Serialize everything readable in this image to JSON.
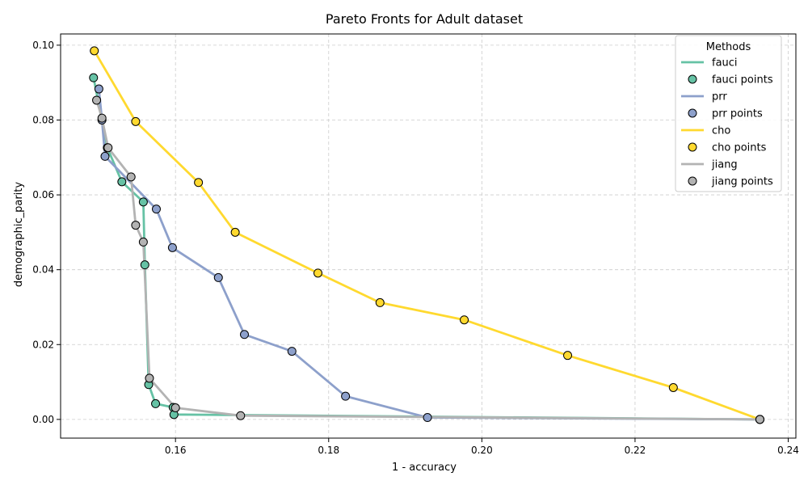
{
  "chart_data": {
    "type": "line",
    "title": "Pareto Fronts for Adult dataset",
    "xlabel": "1 - accuracy",
    "ylabel": "demographic_parity",
    "xlim": [
      0.145,
      0.241
    ],
    "ylim": [
      -0.005,
      0.103
    ],
    "xticks": [
      0.16,
      0.18,
      0.2,
      0.22,
      0.24
    ],
    "xtick_labels": [
      "0.16",
      "0.18",
      "0.20",
      "0.22",
      "0.24"
    ],
    "yticks": [
      0.0,
      0.02,
      0.04,
      0.06,
      0.08,
      0.1
    ],
    "ytick_labels": [
      "0.00",
      "0.02",
      "0.04",
      "0.06",
      "0.08",
      "0.10"
    ],
    "grid": true,
    "legend": {
      "title": "Methods",
      "position": "top-right",
      "entries": [
        {
          "label": "fauci",
          "kind": "line",
          "series": 0
        },
        {
          "label": "fauci points",
          "kind": "marker",
          "series": 0
        },
        {
          "label": "prr",
          "kind": "line",
          "series": 1
        },
        {
          "label": "prr points",
          "kind": "marker",
          "series": 1
        },
        {
          "label": "cho",
          "kind": "line",
          "series": 2
        },
        {
          "label": "cho points",
          "kind": "marker",
          "series": 2
        },
        {
          "label": "jiang",
          "kind": "line",
          "series": 3
        },
        {
          "label": "jiang points",
          "kind": "marker",
          "series": 3
        }
      ]
    },
    "series": [
      {
        "name": "fauci",
        "color": "#66c2a5",
        "points": [
          [
            0.1493,
            0.0913
          ],
          [
            0.1511,
            0.0726
          ],
          [
            0.153,
            0.0635
          ],
          [
            0.1558,
            0.0581
          ],
          [
            0.156,
            0.0413
          ],
          [
            0.1565,
            0.0093
          ],
          [
            0.1574,
            0.0042
          ],
          [
            0.1597,
            0.0032
          ],
          [
            0.1598,
            0.0013
          ],
          [
            0.2363,
            0.0
          ]
        ]
      },
      {
        "name": "prr",
        "color": "#8da0cb",
        "points": [
          [
            0.15,
            0.0883
          ],
          [
            0.1504,
            0.08
          ],
          [
            0.1508,
            0.0703
          ],
          [
            0.1575,
            0.0562
          ],
          [
            0.1596,
            0.0459
          ],
          [
            0.1656,
            0.0379
          ],
          [
            0.169,
            0.0227
          ],
          [
            0.1752,
            0.0182
          ],
          [
            0.1822,
            0.0062
          ],
          [
            0.1929,
            0.0005
          ],
          [
            0.2363,
            0.0
          ]
        ]
      },
      {
        "name": "cho",
        "color": "#ffd92f",
        "points": [
          [
            0.1494,
            0.0985
          ],
          [
            0.1548,
            0.0796
          ],
          [
            0.163,
            0.0633
          ],
          [
            0.1678,
            0.05
          ],
          [
            0.1786,
            0.0391
          ],
          [
            0.1867,
            0.0312
          ],
          [
            0.1977,
            0.0266
          ],
          [
            0.2112,
            0.0171
          ],
          [
            0.225,
            0.0085
          ],
          [
            0.2363,
            0.0
          ]
        ]
      },
      {
        "name": "jiang",
        "color": "#b3b3b3",
        "points": [
          [
            0.1497,
            0.0853
          ],
          [
            0.1504,
            0.0805
          ],
          [
            0.1512,
            0.0726
          ],
          [
            0.1542,
            0.0648
          ],
          [
            0.1548,
            0.0519
          ],
          [
            0.1558,
            0.0474
          ],
          [
            0.1566,
            0.011
          ],
          [
            0.16,
            0.0031
          ],
          [
            0.1685,
            0.001
          ],
          [
            0.2363,
            0.0
          ]
        ]
      }
    ]
  }
}
